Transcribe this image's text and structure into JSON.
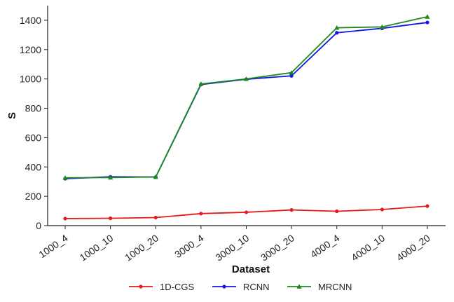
{
  "chart_data": {
    "type": "line",
    "title": "",
    "xlabel": "Dataset",
    "ylabel": "S",
    "categories": [
      "1000_4",
      "1000_10",
      "1000_20",
      "3000_4",
      "3000_10",
      "3000_20",
      "4000_4",
      "4000_10",
      "4000_20"
    ],
    "ylim": [
      0,
      1500
    ],
    "yticks": [
      0,
      200,
      400,
      600,
      800,
      1000,
      1200,
      1400
    ],
    "grid": false,
    "legend_position": "bottom",
    "series": [
      {
        "name": "1D-CGS",
        "color": "#e41a1c",
        "marker": "circle",
        "values": [
          48,
          50,
          55,
          82,
          91,
          107,
          98,
          110,
          133
        ]
      },
      {
        "name": "RCNN",
        "color": "#1515e6",
        "marker": "circle",
        "values": [
          320,
          333,
          331,
          962,
          998,
          1021,
          1315,
          1345,
          1385
        ]
      },
      {
        "name": "MRCNN",
        "color": "#1e8a1e",
        "marker": "triangle",
        "values": [
          326,
          328,
          332,
          966,
          1000,
          1043,
          1349,
          1355,
          1424
        ]
      }
    ]
  }
}
